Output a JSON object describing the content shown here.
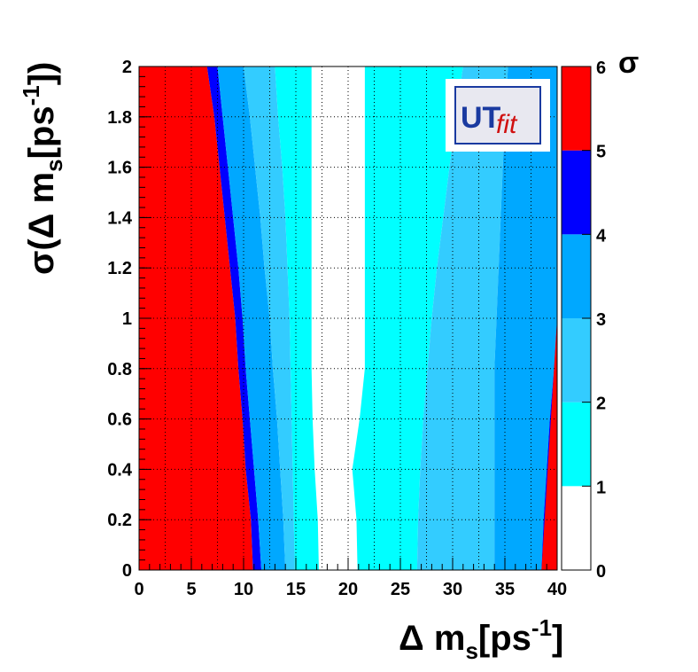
{
  "chart_data": {
    "type": "heatmap",
    "title": "",
    "xlabel": "Δ m_s[ps^-1]",
    "ylabel": "σ(Δ m_s[ps^-1])",
    "xlim": [
      0,
      40
    ],
    "ylim": [
      0,
      2
    ],
    "x_ticks": [
      "0",
      "5",
      "10",
      "15",
      "20",
      "25",
      "30",
      "35",
      "40"
    ],
    "y_ticks": [
      "0",
      "0.2",
      "0.4",
      "0.6",
      "0.8",
      "1",
      "1.2",
      "1.4",
      "1.6",
      "1.8",
      "2"
    ],
    "grid": true,
    "colorbar": {
      "title": "σ",
      "ticks": [
        "0",
        "1",
        "2",
        "3",
        "4",
        "5",
        "6"
      ],
      "levels": [
        {
          "from": 0,
          "to": 1,
          "color": "#ffffff"
        },
        {
          "from": 1,
          "to": 2,
          "color": "#00ffff"
        },
        {
          "from": 2,
          "to": 3,
          "color": "#33ccff"
        },
        {
          "from": 3,
          "to": 4,
          "color": "#00a8ff"
        },
        {
          "from": 4,
          "to": 5,
          "color": "#0000ff"
        },
        {
          "from": 5,
          "to": 6,
          "color": "#ff0000"
        }
      ]
    },
    "contour_boundaries": {
      "y": [
        0,
        0.2,
        0.4,
        0.6,
        0.8,
        1.0,
        1.2,
        1.4,
        1.6,
        1.8,
        2.0
      ],
      "left_5sigma": [
        10.9,
        10.7,
        10.2,
        9.9,
        9.5,
        9.2,
        8.7,
        8.2,
        7.7,
        7.2,
        6.5
      ],
      "left_4sigma": [
        11.7,
        11.4,
        11.0,
        10.6,
        10.2,
        9.9,
        9.5,
        9.0,
        8.5,
        8.0,
        7.5
      ],
      "left_3sigma": [
        14.0,
        13.8,
        13.5,
        13.2,
        12.8,
        12.5,
        12.0,
        11.6,
        11.1,
        10.6,
        10.0
      ],
      "left_2sigma": [
        14.9,
        14.8,
        14.7,
        14.6,
        14.5,
        14.4,
        14.2,
        14.0,
        13.7,
        13.3,
        13.0
      ],
      "left_1sigma": [
        17.2,
        17.1,
        16.8,
        16.6,
        16.5,
        16.5,
        16.5,
        16.5,
        16.5,
        16.5,
        16.5
      ],
      "right_1sigma": [
        20.9,
        20.8,
        20.4,
        21.1,
        21.6,
        21.6,
        21.6,
        21.6,
        21.6,
        21.6,
        21.6
      ],
      "right_2sigma": [
        26.6,
        26.7,
        26.9,
        27.2,
        27.6,
        28.0,
        28.5,
        29.1,
        29.7,
        30.3,
        31.0
      ],
      "right_3sigma": [
        34.0,
        34.0,
        34.0,
        34.0,
        34.0,
        34.2,
        34.4,
        34.6,
        34.8,
        35.0,
        35.3
      ],
      "right_4sigma": [
        38.5,
        38.7,
        39.0,
        39.3,
        39.7,
        40.0,
        40.0,
        40.0,
        40.0,
        40.0,
        40.0
      ],
      "right_5sigma": [
        40.0,
        40.0,
        40.0,
        40.0,
        40.0,
        40.0,
        40.0,
        40.0,
        40.0,
        40.0,
        40.0
      ]
    }
  },
  "logo": {
    "text_ut": "UT",
    "text_fit": "fit",
    "color_ut": "#1a3aa0",
    "color_fit": "#d01010"
  }
}
